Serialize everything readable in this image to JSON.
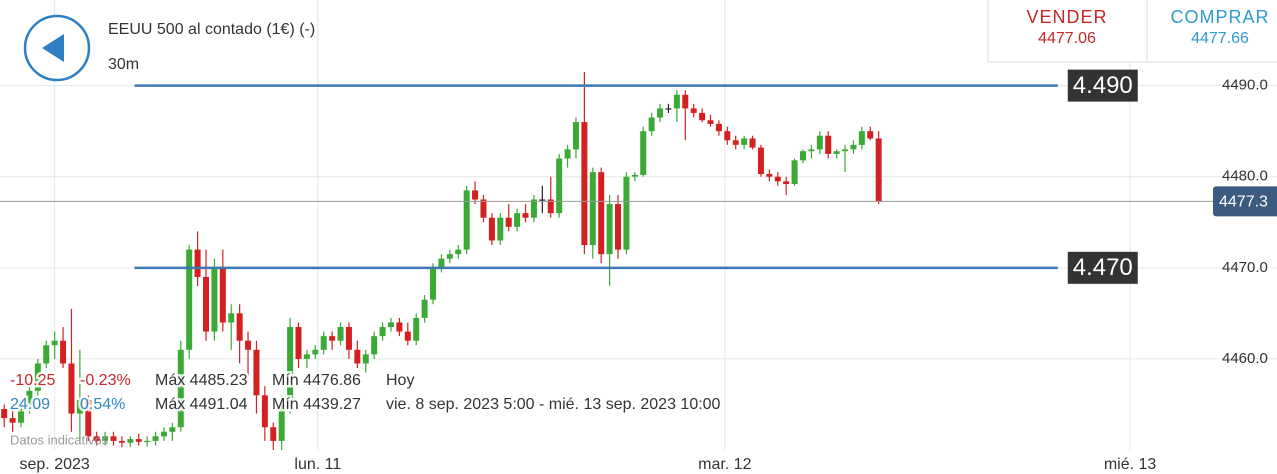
{
  "header": {
    "instrument": "EEUU 500 al contado (1€) (-)",
    "timeframe": "30m",
    "sell": {
      "label": "VENDER",
      "price": "4477.06"
    },
    "buy": {
      "label": "COMPRAR",
      "price": "4477.66"
    }
  },
  "stats": [
    {
      "change": "-10.25",
      "pct": "-0.23%",
      "high": "Máx 4485.23",
      "low": "Mín 4476.86",
      "period": "Hoy"
    },
    {
      "change": "24.09",
      "pct": "0.54%",
      "high": "Máx 4491.04",
      "low": "Mín 4439.27",
      "period": "vie. 8 sep. 2023 5:00 - mié. 13 sep. 2023 10:00"
    }
  ],
  "disclaimer": "Datos indicativos",
  "chart_data": {
    "type": "candlestick",
    "ylim": [
      4450,
      4499.4
    ],
    "yticks": [
      {
        "value": 4490,
        "label": "4490.0"
      },
      {
        "value": 4480,
        "label": "4480.0"
      },
      {
        "value": 4470,
        "label": "4470.0"
      },
      {
        "value": 4460,
        "label": "4460.0"
      }
    ],
    "xlim": [
      -0.5,
      144
    ],
    "xticks": [
      {
        "value": 6,
        "label": "sep. 2023"
      },
      {
        "value": 37.3,
        "label": "lun. 11"
      },
      {
        "value": 85.7,
        "label": "mar. 12"
      },
      {
        "value": 133.9,
        "label": "mié. 13"
      }
    ],
    "up_color": "#3aa935",
    "down_color": "#d42020",
    "level_color": "#3a78b0",
    "levels": [
      {
        "value": 4490,
        "label": "4.490"
      },
      {
        "value": 4470,
        "label": "4.470"
      }
    ],
    "current": {
      "value": 4477.3,
      "label": "4477.3"
    },
    "candles": [
      [
        4454.5,
        4455,
        4452.5,
        4453.5
      ],
      [
        4453.5,
        4454.5,
        4452,
        4453
      ],
      [
        4453,
        4455,
        4452.5,
        4454.5
      ],
      [
        4454.5,
        4457,
        4454,
        4456.5
      ],
      [
        4456.5,
        4460,
        4456,
        4459.5
      ],
      [
        4459.5,
        4462,
        4459,
        4461.5
      ],
      [
        4461.5,
        4463,
        4460,
        4462
      ],
      [
        4462,
        4463.5,
        4459,
        4459.5
      ],
      [
        4459.5,
        4465.5,
        4452,
        4454
      ],
      [
        4454,
        4461,
        4451,
        4455.5
      ],
      [
        4455.5,
        4456,
        4451,
        4451.5
      ],
      [
        4451.5,
        4452,
        4450.5,
        4451
      ],
      [
        4451,
        4452,
        4450.5,
        4451.5
      ],
      [
        4451.5,
        4452,
        4450.5,
        4451
      ],
      [
        4451,
        4451.5,
        4450.3,
        4450.8
      ],
      [
        4450.8,
        4451.5,
        4450.3,
        4451.2
      ],
      [
        4451.2,
        4451.8,
        4450.5,
        4450.9
      ],
      [
        4450.9,
        4451.5,
        4450.4,
        4451
      ],
      [
        4451,
        4452,
        4450.5,
        4451.5
      ],
      [
        4451.5,
        4452.5,
        4451,
        4452
      ],
      [
        4452,
        4453,
        4451,
        4452.5
      ],
      [
        4452.5,
        4462,
        4452,
        4461
      ],
      [
        4461,
        4472.5,
        4460,
        4472
      ],
      [
        4472,
        4474,
        4468,
        4469
      ],
      [
        4469,
        4472,
        4462,
        4463
      ],
      [
        4463,
        4471,
        4462,
        4470
      ],
      [
        4470,
        4472,
        4463,
        4464
      ],
      [
        4464,
        4466,
        4461,
        4465
      ],
      [
        4465,
        4466,
        4459.5,
        4462
      ],
      [
        4462,
        4463,
        4458,
        4461
      ],
      [
        4461,
        4462,
        4454,
        4456
      ],
      [
        4456,
        4457,
        4451,
        4452.5
      ],
      [
        4452.5,
        4453,
        4450,
        4451
      ],
      [
        4451,
        4456,
        4450,
        4455
      ],
      [
        4455,
        4464.5,
        4454,
        4463.5
      ],
      [
        4463.5,
        4464,
        4459,
        4460
      ],
      [
        4460,
        4461,
        4459,
        4460.5
      ],
      [
        4460.5,
        4461.5,
        4460,
        4461
      ],
      [
        4461,
        4463,
        4460.5,
        4462.5
      ],
      [
        4462.5,
        4463,
        4461,
        4462
      ],
      [
        4462,
        4464,
        4461.5,
        4463.5
      ],
      [
        4463.5,
        4464,
        4460,
        4461
      ],
      [
        4461,
        4462,
        4459,
        4459.5
      ],
      [
        4459.5,
        4461,
        4458.5,
        4460.5
      ],
      [
        4460.5,
        4463,
        4460,
        4462.5
      ],
      [
        4462.5,
        4464,
        4462,
        4463.5
      ],
      [
        4463.5,
        4464.5,
        4463,
        4464
      ],
      [
        4464,
        4464.5,
        4462.5,
        4463
      ],
      [
        4463,
        4464,
        4461.5,
        4462
      ],
      [
        4462,
        4465,
        4461.5,
        4464.5
      ],
      [
        4464.5,
        4467,
        4464,
        4466.5
      ],
      [
        4466.5,
        4470.5,
        4466,
        4470
      ],
      [
        4470,
        4471.5,
        4469.5,
        4471
      ],
      [
        4471,
        4472,
        4470.5,
        4471.5
      ],
      [
        4471.5,
        4472.5,
        4471,
        4472
      ],
      [
        4472,
        4479,
        4471.5,
        4478.5
      ],
      [
        4478.5,
        4479.5,
        4477,
        4477.5
      ],
      [
        4477.5,
        4478,
        4475,
        4475.5
      ],
      [
        4475.5,
        4476,
        4472.5,
        4473
      ],
      [
        4473,
        4476,
        4472.5,
        4475.5
      ],
      [
        4475.5,
        4477,
        4474,
        4474.5
      ],
      [
        4474.5,
        4476.5,
        4474,
        4476
      ],
      [
        4476,
        4477,
        4475,
        4475.5
      ],
      [
        4475.5,
        4478,
        4475,
        4477.5
      ],
      [
        4477.5,
        4479,
        4476,
        4477.5
      ],
      [
        4477.5,
        4480,
        4475.5,
        4476
      ],
      [
        4476,
        4482.5,
        4475.5,
        4482
      ],
      [
        4482,
        4483.5,
        4481,
        4483
      ],
      [
        4483,
        4486.5,
        4482,
        4486
      ],
      [
        4486,
        4491.5,
        4471.5,
        4472.5
      ],
      [
        4472.5,
        4481,
        4471,
        4480.5
      ],
      [
        4480.5,
        4481,
        4470.5,
        4471.5
      ],
      [
        4471.5,
        4478,
        4468,
        4477
      ],
      [
        4477,
        4478,
        4471,
        4472
      ],
      [
        4472,
        4480.5,
        4471.5,
        4480
      ],
      [
        4480,
        4480.5,
        4479.5,
        4480.2
      ],
      [
        4480.2,
        4485.5,
        4480,
        4485
      ],
      [
        4485,
        4487,
        4484.5,
        4486.5
      ],
      [
        4486.5,
        4488,
        4486,
        4487.5
      ],
      [
        4487.5,
        4488,
        4487,
        4487.5
      ],
      [
        4487.5,
        4489.5,
        4486,
        4489
      ],
      [
        4489,
        4489.5,
        4484,
        4487.5
      ],
      [
        4487.5,
        4488,
        4486.5,
        4487
      ],
      [
        4487,
        4487.5,
        4486,
        4486.2
      ],
      [
        4486.2,
        4486.8,
        4485.5,
        4485.8
      ],
      [
        4485.8,
        4486.2,
        4484.5,
        4485
      ],
      [
        4485,
        4485.5,
        4483.5,
        4484
      ],
      [
        4484,
        4484.5,
        4483,
        4483.5
      ],
      [
        4483.5,
        4484.5,
        4483,
        4484.2
      ],
      [
        4484.2,
        4484.5,
        4483,
        4483.2
      ],
      [
        4483.2,
        4483.5,
        4480,
        4480.3
      ],
      [
        4480.3,
        4480.8,
        4479.5,
        4480
      ],
      [
        4480,
        4480.5,
        4479,
        4479.5
      ],
      [
        4479.5,
        4480,
        4478,
        4479.2
      ],
      [
        4479.2,
        4482,
        4479,
        4481.8
      ],
      [
        4481.8,
        4483,
        4481.5,
        4482.8
      ],
      [
        4482.8,
        4483.5,
        4482,
        4483
      ],
      [
        4483,
        4485,
        4482.5,
        4484.5
      ],
      [
        4484.5,
        4485,
        4482,
        4482.5
      ],
      [
        4482.5,
        4483,
        4482,
        4482.8
      ],
      [
        4482.8,
        4483.5,
        4480.5,
        4483
      ],
      [
        4483,
        4484,
        4482.5,
        4483.5
      ],
      [
        4483.5,
        4485.5,
        4483,
        4485
      ],
      [
        4485,
        4485.5,
        4484,
        4484.2
      ],
      [
        4484.2,
        4485,
        4477,
        4477.3
      ]
    ]
  }
}
